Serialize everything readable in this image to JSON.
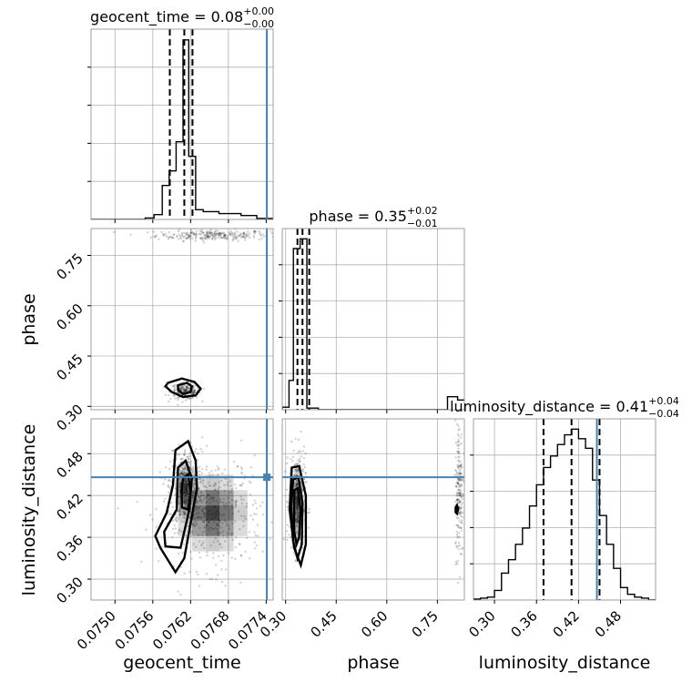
{
  "chart_data": {
    "type": "corner",
    "parameters": [
      "geocent_time",
      "phase",
      "luminosity_distance"
    ],
    "titles": [
      {
        "param": "geocent_time",
        "median": "0.08",
        "plus": "+0.00",
        "minus": "−0.00"
      },
      {
        "param": "phase",
        "median": "0.35",
        "plus": "+0.02",
        "minus": "−0.01"
      },
      {
        "param": "luminosity_distance",
        "median": "0.41",
        "plus": "+0.04",
        "minus": "−0.04"
      }
    ],
    "ranges": {
      "geocent_time": [
        0.07462,
        0.07751
      ],
      "phase": [
        0.29,
        0.83
      ],
      "luminosity_distance": [
        0.27,
        0.53
      ]
    },
    "ticks": {
      "geocent_time": [
        0.075,
        0.0756,
        0.0762,
        0.0768,
        0.0774
      ],
      "phase": [
        0.3,
        0.45,
        0.6,
        0.75
      ],
      "luminosity_distance": [
        0.3,
        0.36,
        0.42,
        0.48
      ]
    },
    "tick_labels": {
      "geocent_time": [
        "0.0750",
        "0.0756",
        "0.0762",
        "0.0768",
        "0.0774"
      ],
      "phase": [
        "0.30",
        "0.45",
        "0.60",
        "0.75"
      ],
      "luminosity_distance": [
        "0.30",
        "0.36",
        "0.42",
        "0.48"
      ]
    },
    "axis_labels": {
      "geocent_time": "geocent_time",
      "phase": "phase",
      "luminosity_distance": "luminosity_distance"
    },
    "quantiles": {
      "geocent_time": [
        0.07587,
        0.0761,
        0.07623
      ],
      "phase": [
        0.335,
        0.35,
        0.37
      ],
      "luminosity_distance": [
        0.37,
        0.41,
        0.45
      ]
    },
    "truths": {
      "geocent_time": 0.07741,
      "luminosity_distance": 0.4462
    },
    "histograms": {
      "geocent_time": {
        "edges": [
          0.07462,
          0.07548,
          0.07562,
          0.07575,
          0.07586,
          0.07597,
          0.07608,
          0.07617,
          0.07628,
          0.0764,
          0.07665,
          0.077,
          0.07725,
          0.07751
        ],
        "counts": [
          0,
          3,
          10,
          70,
          100,
          160,
          370,
          130,
          20,
          16,
          12,
          8,
          2
        ]
      },
      "phase": {
        "edges": [
          0.29,
          0.31,
          0.323,
          0.343,
          0.363,
          0.397,
          0.78,
          0.81,
          0.83
        ],
        "counts": [
          8,
          90,
          495,
          525,
          5,
          0,
          40,
          30
        ]
      },
      "luminosity_distance": {
        "edges": [
          0.27,
          0.28,
          0.29,
          0.3,
          0.31,
          0.32,
          0.33,
          0.34,
          0.35,
          0.36,
          0.37,
          0.38,
          0.39,
          0.4,
          0.41,
          0.42,
          0.43,
          0.44,
          0.45,
          0.46,
          0.47,
          0.48,
          0.49,
          0.5,
          0.51,
          0.52,
          0.53
        ],
        "counts": [
          1,
          2,
          3,
          10,
          28,
          42,
          58,
          75,
          98,
          120,
          138,
          150,
          162,
          172,
          178,
          168,
          158,
          125,
          88,
          58,
          33,
          13,
          6,
          3,
          2,
          0
        ]
      }
    },
    "scatter_clusters": {
      "phase_vs_geocent_time": [
        {
          "x": 0.07655,
          "y": 0.81,
          "sx": 0.00045,
          "sy": 0.008,
          "n": 260
        },
        {
          "x": 0.07612,
          "y": 0.345,
          "sx": 0.00012,
          "sy": 0.012,
          "n": 220
        }
      ],
      "luminosity_distance_vs_geocent_time": [
        {
          "x": 0.07612,
          "y": 0.43,
          "sx": 0.00012,
          "sy": 0.028,
          "n": 380
        },
        {
          "x": 0.07655,
          "y": 0.395,
          "sx": 0.0004,
          "sy": 0.04,
          "n": 420
        }
      ],
      "luminosity_distance_vs_phase": [
        {
          "x": 0.335,
          "y": 0.41,
          "sx": 0.012,
          "sy": 0.035,
          "n": 420
        },
        {
          "x": 0.815,
          "y": 0.43,
          "sx": 0.006,
          "sy": 0.05,
          "n": 200
        }
      ]
    },
    "contours": {
      "phase_vs_geocent_time": [
        [
          [
            0.07584,
            0.37
          ],
          [
            0.07606,
            0.383
          ],
          [
            0.07626,
            0.373
          ],
          [
            0.07636,
            0.353
          ],
          [
            0.07628,
            0.333
          ],
          [
            0.07608,
            0.328
          ],
          [
            0.0759,
            0.343
          ],
          [
            0.0758,
            0.36
          ]
        ],
        [
          [
            0.076,
            0.363
          ],
          [
            0.07614,
            0.37
          ],
          [
            0.07622,
            0.36
          ],
          [
            0.0762,
            0.343
          ],
          [
            0.07608,
            0.337
          ],
          [
            0.076,
            0.35
          ]
        ]
      ],
      "luminosity_distance_vs_geocent_time": [
        [
          [
            0.07596,
            0.485
          ],
          [
            0.07616,
            0.498
          ],
          [
            0.07628,
            0.47
          ],
          [
            0.0763,
            0.43
          ],
          [
            0.0762,
            0.38
          ],
          [
            0.0761,
            0.33
          ],
          [
            0.07596,
            0.31
          ],
          [
            0.07572,
            0.345
          ],
          [
            0.07564,
            0.362
          ],
          [
            0.07582,
            0.395
          ],
          [
            0.07592,
            0.435
          ]
        ],
        [
          [
            0.076,
            0.46
          ],
          [
            0.07612,
            0.47
          ],
          [
            0.07622,
            0.445
          ],
          [
            0.07618,
            0.4
          ],
          [
            0.07604,
            0.345
          ],
          [
            0.0758,
            0.347
          ],
          [
            0.07578,
            0.368
          ],
          [
            0.07598,
            0.4
          ]
        ],
        [
          [
            0.07608,
            0.445
          ],
          [
            0.07616,
            0.45
          ],
          [
            0.0762,
            0.425
          ],
          [
            0.07616,
            0.4
          ],
          [
            0.07606,
            0.403
          ],
          [
            0.07606,
            0.428
          ]
        ]
      ],
      "luminosity_distance_vs_phase": [
        [
          [
            0.318,
            0.46
          ],
          [
            0.34,
            0.462
          ],
          [
            0.36,
            0.42
          ],
          [
            0.36,
            0.35
          ],
          [
            0.345,
            0.32
          ],
          [
            0.325,
            0.345
          ],
          [
            0.312,
            0.4
          ]
        ],
        [
          [
            0.322,
            0.443
          ],
          [
            0.338,
            0.446
          ],
          [
            0.35,
            0.41
          ],
          [
            0.348,
            0.35
          ],
          [
            0.335,
            0.33
          ],
          [
            0.322,
            0.355
          ],
          [
            0.317,
            0.405
          ]
        ],
        [
          [
            0.326,
            0.428
          ],
          [
            0.336,
            0.43
          ],
          [
            0.344,
            0.4
          ],
          [
            0.34,
            0.36
          ],
          [
            0.332,
            0.35
          ],
          [
            0.325,
            0.37
          ]
        ],
        [
          [
            0.804,
            0.403
          ],
          [
            0.808,
            0.406
          ],
          [
            0.811,
            0.4
          ],
          [
            0.808,
            0.394
          ],
          [
            0.804,
            0.396
          ]
        ]
      ]
    },
    "truth_marker": {
      "x": 0.07741,
      "y": 0.4462
    }
  },
  "colors": {
    "truth": "#4682b4",
    "histogram": "#000000",
    "points": "#000000",
    "grid": "#b0b0b0"
  }
}
